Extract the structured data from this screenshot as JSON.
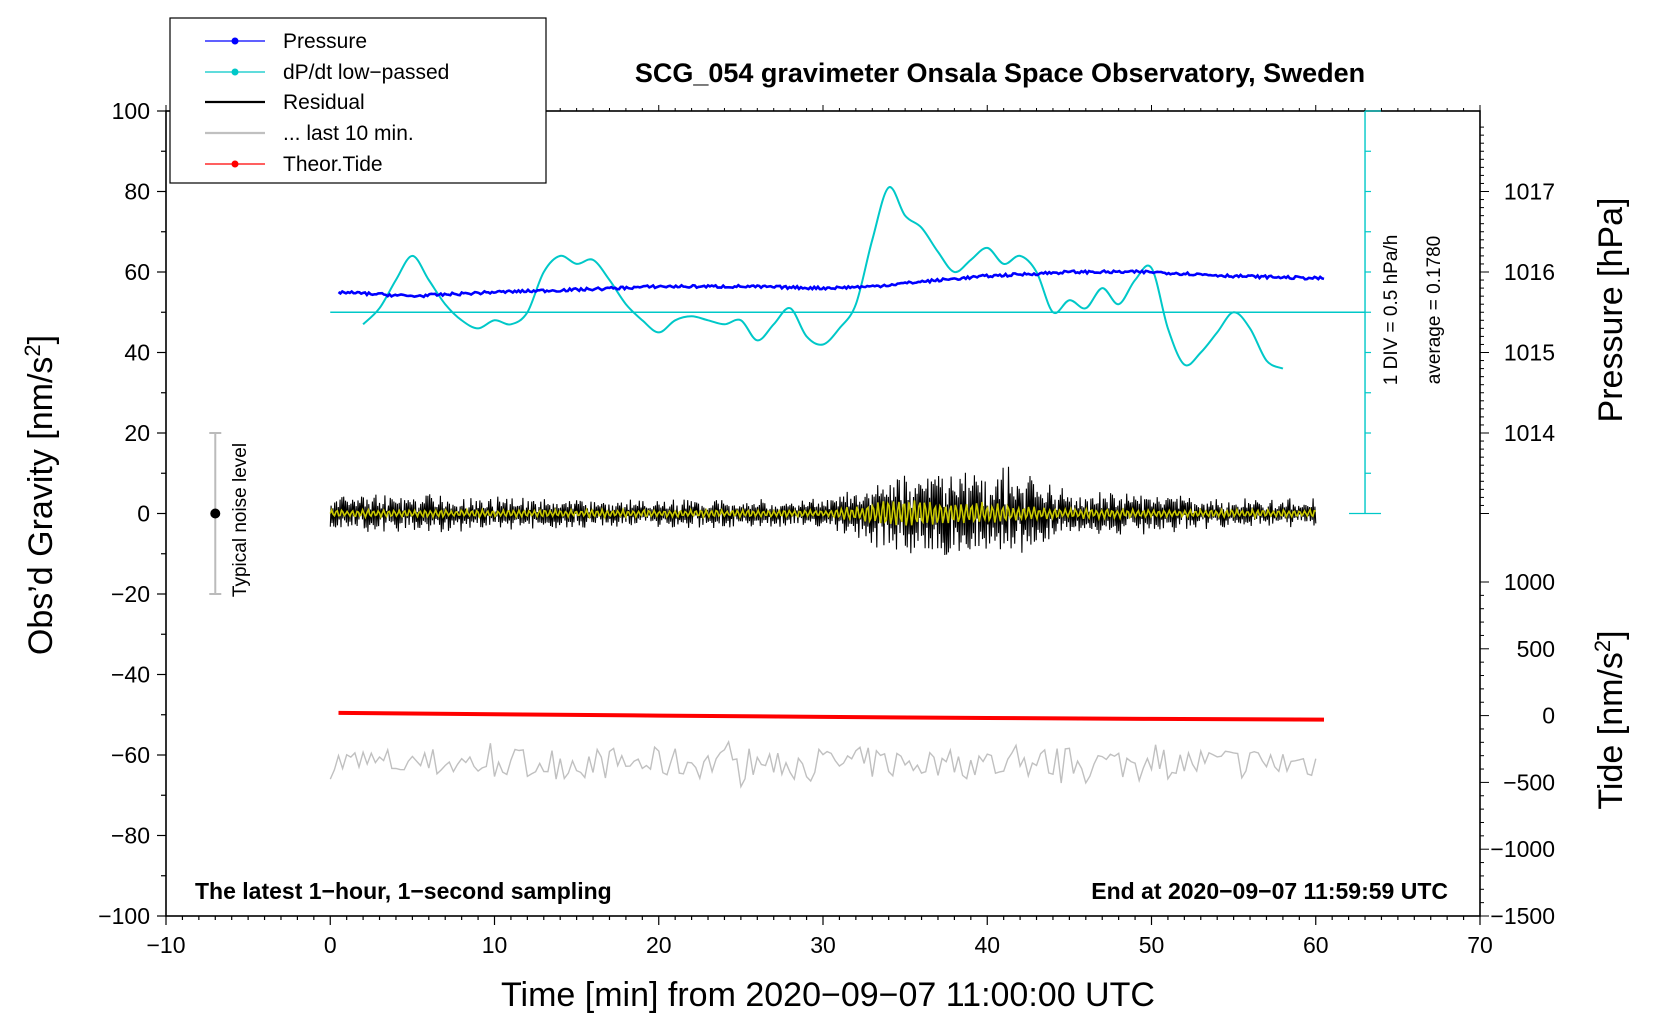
{
  "chart_data": {
    "type": "line",
    "title": "SCG_054 gravimeter Onsala Space Observatory, Sweden",
    "xlabel": "Time [min] from 2020−09−07 11:00:00 UTC",
    "ylabel_left": "Obs’d Gravity [nm/s",
    "ylabel_left_sup": "2",
    "ylabel_left_close": "]",
    "ylabel_pressure": "Pressure [hPa]",
    "ylabel_tide": "Tide [nm/s",
    "ylabel_tide_sup": "2",
    "ylabel_tide_close": "]",
    "xlim": [
      -10,
      70
    ],
    "ylim": [
      -100,
      100
    ],
    "pressure_range": [
      1013,
      1018
    ],
    "tide_range": [
      -1500,
      1500
    ],
    "x_ticks": [
      -10,
      0,
      10,
      20,
      30,
      40,
      50,
      60,
      70
    ],
    "x_tick_labels": [
      "−10",
      "0",
      "10",
      "20",
      "30",
      "40",
      "50",
      "60",
      "70"
    ],
    "y_ticks": [
      100,
      80,
      60,
      40,
      20,
      0,
      -20,
      -40,
      -60,
      -80,
      -100
    ],
    "y_tick_labels": [
      "100",
      "80",
      "60",
      "40",
      "20",
      "0",
      "−20",
      "−40",
      "−60",
      "−80",
      "−100"
    ],
    "pressure_ticks": [
      1017,
      1016,
      1015,
      1014
    ],
    "pressure_tick_labels": [
      "1017",
      "1016",
      "1015",
      "1014"
    ],
    "tide_ticks": [
      1000,
      500,
      0,
      -500,
      -1000,
      -1500
    ],
    "tide_tick_labels": [
      "1000",
      "500",
      "0",
      "−500",
      "−1000",
      "−1500"
    ],
    "legend": {
      "position": "top-left",
      "entries": [
        {
          "label": "Pressure",
          "color": "#0000ff",
          "marker": true
        },
        {
          "label": "dP/dt low−passed",
          "color": "#00c8c8",
          "marker": true
        },
        {
          "label": "Residual",
          "color": "#000000",
          "marker": false
        },
        {
          "label": "... last 10 min.",
          "color": "#c0c0c0",
          "marker": false
        },
        {
          "label": "Theor.Tide",
          "color": "#ff0000",
          "marker": true
        }
      ]
    },
    "noise_label": "Typical noise level",
    "noise_bar": {
      "x": -7,
      "center": 0,
      "low": -20,
      "high": 20
    },
    "dpdt_scale_label": "1 DIV = 0.5 hPa/h",
    "dpdt_average_label": "average = 0.1780",
    "dpdt_scale_axis_x": 63,
    "dpdt_baseline_y": 50,
    "note_left": "The latest 1−hour, 1−second sampling",
    "note_right": "End at 2020−09−07 11:59:59 UTC",
    "series": [
      {
        "name": "Pressure",
        "color": "#0000ff",
        "axis": "pressure_hPa",
        "x": [
          0.5,
          5,
          10,
          15,
          20,
          25,
          30,
          33,
          36,
          40,
          45,
          50,
          55,
          60.5
        ],
        "y": [
          1015.75,
          1015.7,
          1015.75,
          1015.78,
          1015.82,
          1015.82,
          1015.8,
          1015.82,
          1015.88,
          1015.95,
          1016.0,
          1016.0,
          1015.95,
          1015.92
        ]
      },
      {
        "name": "dP/dt low−passed",
        "color": "#00c8c8",
        "axis": "gravity_scale",
        "x": [
          2,
          3,
          4,
          5,
          6,
          7,
          8,
          9,
          10,
          11,
          12,
          13,
          14,
          15,
          16,
          17,
          18,
          19,
          20,
          21,
          22,
          23,
          24,
          25,
          26,
          27,
          28,
          29,
          30,
          31,
          32,
          33,
          34,
          35,
          36,
          37,
          38,
          39,
          40,
          41,
          42,
          43,
          44,
          45,
          46,
          47,
          48,
          49,
          50,
          51,
          52,
          53,
          54,
          55,
          56,
          57,
          58
        ],
        "y": [
          47,
          51,
          58,
          64,
          58,
          52,
          48,
          46,
          48,
          47,
          50,
          60,
          64,
          62,
          63,
          58,
          52,
          48,
          45,
          48,
          49,
          48,
          47,
          48,
          43,
          47,
          51,
          44,
          42,
          46,
          52,
          68,
          81,
          74,
          71,
          65,
          60,
          63,
          66,
          62,
          64,
          60,
          50,
          53,
          51,
          56,
          52,
          58,
          61,
          46,
          37,
          40,
          45,
          50,
          46,
          38,
          36
        ]
      },
      {
        "name": "Residual",
        "color": "#000000",
        "axis": "gravity",
        "x": [
          0,
          5,
          10,
          15,
          20,
          25,
          30,
          32,
          34,
          36,
          38,
          40,
          42,
          44,
          46,
          50,
          55,
          60
        ],
        "amplitude": [
          4,
          4,
          3.5,
          3,
          3,
          3,
          3,
          5,
          8,
          9,
          9,
          10,
          9,
          6,
          5,
          4,
          3,
          3
        ]
      },
      {
        "name": "Residual (filtered)",
        "color": "#c8c800",
        "axis": "gravity",
        "x": [
          0,
          10,
          20,
          30,
          32,
          34,
          36,
          38,
          40,
          42,
          44,
          50,
          60
        ],
        "amplitude": [
          1,
          1,
          1,
          1,
          2,
          4,
          4,
          3,
          3,
          2,
          1.5,
          1,
          1
        ]
      },
      {
        "name": "... last 10 min.",
        "color": "#c0c0c0",
        "axis": "gravity",
        "x": [
          0,
          60
        ],
        "offset": -62,
        "amplitude": 4
      },
      {
        "name": "Theor.Tide",
        "color": "#ff0000",
        "axis": "tide_nm_s2",
        "x": [
          0.5,
          10,
          20,
          30,
          40,
          50,
          60.5
        ],
        "y": [
          20,
          10,
          0,
          -10,
          -18,
          -25,
          -30
        ]
      }
    ]
  }
}
